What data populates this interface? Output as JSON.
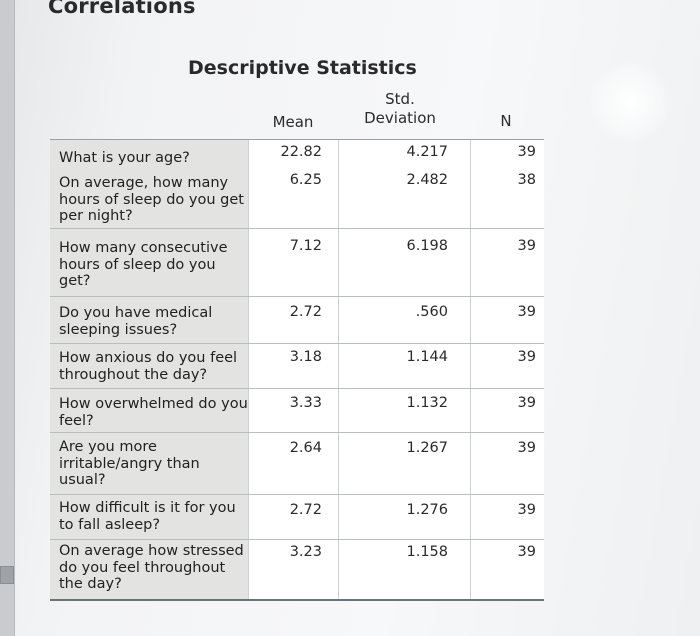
{
  "page_title": "Correlations",
  "table": {
    "title": "Descriptive Statistics",
    "headers": {
      "mean": "Mean",
      "std": "Std. Deviation",
      "n": "N"
    },
    "rows": [
      {
        "label": "What is your age?",
        "mean": "22.82",
        "std": "4.217",
        "n": "39"
      },
      {
        "label": "On average, how many hours of sleep do you get per night?",
        "mean": "6.25",
        "std": "2.482",
        "n": "38"
      },
      {
        "label": "How many consecutive hours of sleep do you get?",
        "mean": "7.12",
        "std": "6.198",
        "n": "39"
      },
      {
        "label": "Do you have medical sleeping issues?",
        "mean": "2.72",
        "std": ".560",
        "n": "39"
      },
      {
        "label": "How anxious do you feel throughout the day?",
        "mean": "3.18",
        "std": "1.144",
        "n": "39"
      },
      {
        "label": "How overwhelmed do you feel?",
        "mean": "3.33",
        "std": "1.132",
        "n": "39"
      },
      {
        "label": "Are you more irritable/angry than usual?",
        "mean": "2.64",
        "std": "1.267",
        "n": "39"
      },
      {
        "label": "How difficult is it for you to fall asleep?",
        "mean": "2.72",
        "std": "1.276",
        "n": "39"
      },
      {
        "label": "On average how stressed do you feel throughout the day?",
        "mean": "3.23",
        "std": "1.158",
        "n": "39"
      }
    ]
  }
}
